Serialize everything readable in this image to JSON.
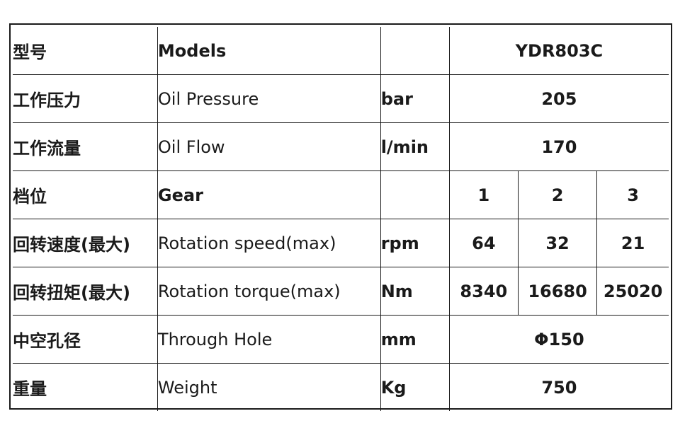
{
  "colors": {
    "label_blue": "#1f7fb6",
    "text": "#1a1a1a",
    "border": "#1a1a1a"
  },
  "rows": [
    {
      "cn": "型号",
      "en": "Models",
      "unit": "",
      "values": [
        "YDR803C"
      ]
    },
    {
      "cn": "工作压力",
      "en": "Oil Pressure",
      "unit": "bar",
      "values": [
        "205"
      ]
    },
    {
      "cn": "工作流量",
      "en": "Oil Flow",
      "unit": "l/min",
      "values": [
        "170"
      ]
    },
    {
      "cn": "档位",
      "en": "Gear",
      "unit": "",
      "values": [
        "1",
        "2",
        "3"
      ]
    },
    {
      "cn": "回转速度(最大)",
      "en": "Rotation speed(max)",
      "unit": "rpm",
      "values": [
        "64",
        "32",
        "21"
      ]
    },
    {
      "cn": "回转扭矩(最大)",
      "en": "Rotation torque(max)",
      "unit": "Nm",
      "values": [
        "8340",
        "16680",
        "25020"
      ]
    },
    {
      "cn": "中空孔径",
      "en": "Through Hole",
      "unit": "mm",
      "values": [
        "Φ150"
      ]
    },
    {
      "cn": "重量",
      "en": "Weight",
      "unit": "Kg",
      "values": [
        "750"
      ]
    }
  ]
}
